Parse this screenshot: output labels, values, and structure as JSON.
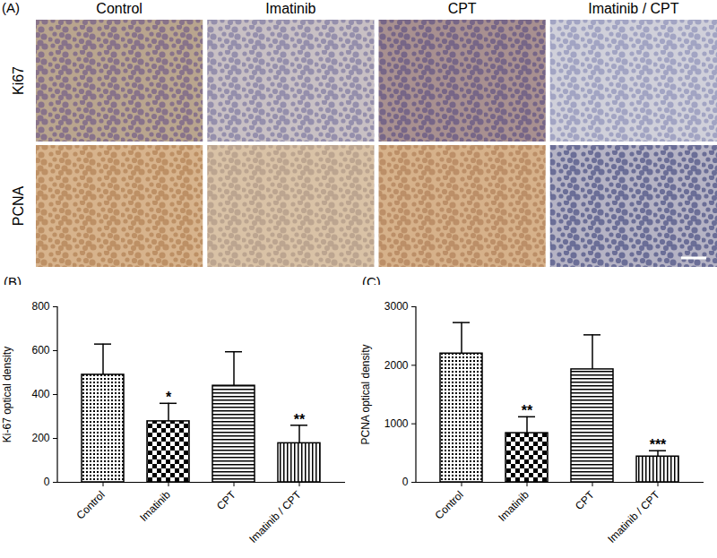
{
  "panel_a": {
    "label": "(A)",
    "columns": [
      "Control",
      "Imatinib",
      "CPT",
      "Imatinib / CPT"
    ],
    "rows": [
      "Ki67",
      "PCNA"
    ]
  },
  "chart_data": [
    {
      "type": "bar",
      "panel": "(B)",
      "ylabel": "Ki-67 optical density",
      "categories": [
        "Control",
        "Imatinib",
        "CPT",
        "Imatinib / CPT"
      ],
      "values": [
        490,
        278,
        440,
        178
      ],
      "errors": [
        140,
        82,
        155,
        82
      ],
      "significance": [
        null,
        "*",
        null,
        "**"
      ],
      "ylim": [
        0,
        800
      ],
      "yticks": [
        0,
        200,
        400,
        600,
        800
      ]
    },
    {
      "type": "bar",
      "panel": "(C)",
      "ylabel": "PCNA optical density",
      "categories": [
        "Control",
        "Imatinib",
        "CPT",
        "Imatinib / CPT"
      ],
      "values": [
        2200,
        840,
        1930,
        440
      ],
      "errors": [
        530,
        280,
        590,
        100
      ],
      "significance": [
        null,
        "**",
        null,
        "***"
      ],
      "ylim": [
        0,
        3000
      ],
      "yticks": [
        0,
        1000,
        2000,
        3000
      ]
    }
  ]
}
